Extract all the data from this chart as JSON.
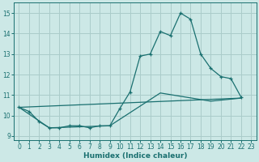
{
  "background_color": "#cce8e6",
  "grid_color": "#aaccca",
  "line_color": "#1a7070",
  "xlim": [
    -0.5,
    23.5
  ],
  "ylim": [
    8.8,
    15.5
  ],
  "yticks": [
    9,
    10,
    11,
    12,
    13,
    14,
    15
  ],
  "xticks": [
    0,
    1,
    2,
    3,
    4,
    5,
    6,
    7,
    8,
    9,
    10,
    11,
    12,
    13,
    14,
    15,
    16,
    17,
    18,
    19,
    20,
    21,
    22,
    23
  ],
  "xlabel": "Humidex (Indice chaleur)",
  "curve1_x": [
    0,
    1,
    2,
    3,
    4,
    5,
    6,
    7,
    8,
    9,
    10,
    11,
    12,
    13,
    14,
    15,
    16,
    17,
    18,
    19,
    20,
    21,
    22
  ],
  "curve1_y": [
    10.4,
    10.2,
    9.7,
    9.4,
    9.4,
    9.5,
    9.5,
    9.4,
    9.5,
    9.5,
    10.35,
    11.15,
    12.9,
    13.0,
    14.1,
    13.9,
    15.0,
    14.7,
    13.0,
    12.3,
    11.9,
    11.8,
    10.9
  ],
  "curve2_x": [
    0,
    3,
    9,
    14,
    19,
    22
  ],
  "curve2_y": [
    10.4,
    9.4,
    9.5,
    11.1,
    10.7,
    10.85
  ],
  "curve3_x": [
    0,
    22
  ],
  "curve3_y": [
    10.4,
    10.85
  ]
}
